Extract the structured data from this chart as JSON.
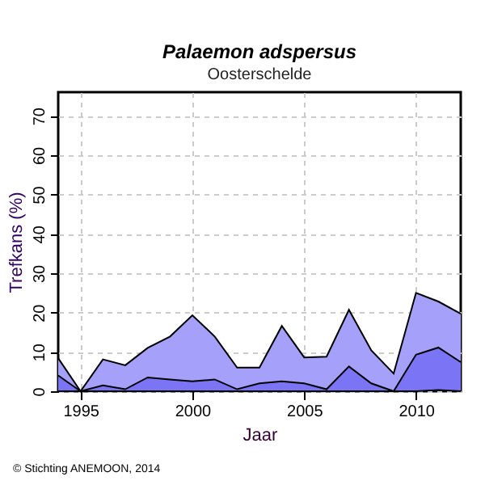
{
  "chart_data": {
    "type": "area",
    "title": "Palaemon adspersus",
    "subtitle": "Oosterschelde",
    "xlabel": "Jaar",
    "ylabel": "Trefkans (%)",
    "x": [
      1994,
      1995,
      1996,
      1997,
      1998,
      1999,
      2000,
      2001,
      2002,
      2003,
      2004,
      2005,
      2006,
      2007,
      2008,
      2009,
      2010,
      2011,
      2012
    ],
    "series": [
      {
        "color": "#a5a0fa",
        "values": [
          8.4,
          0,
          8.1,
          6.6,
          11,
          13.9,
          19.3,
          13.9,
          6,
          6,
          16.6,
          8.6,
          8.8,
          20.7,
          10.4,
          4.5,
          25,
          22.8,
          19.7
        ]
      },
      {
        "color": "#7b74f5",
        "values": [
          4,
          0,
          1.5,
          0.5,
          3.5,
          3,
          2.5,
          3,
          0.5,
          2,
          2.5,
          2,
          0.5,
          6.3,
          2,
          0,
          9.3,
          11.1,
          7.4
        ]
      },
      {
        "color": "#4b44e0",
        "values": [
          0,
          0,
          0,
          0,
          0,
          0,
          0,
          0,
          0,
          0,
          0,
          0,
          0,
          0,
          0,
          0,
          0,
          0.3,
          0
        ]
      }
    ],
    "xlim": [
      1994,
      2012
    ],
    "ylim": [
      0,
      76
    ],
    "xticks": [
      1995,
      2000,
      2005,
      2010
    ],
    "yticks": [
      0,
      10,
      20,
      30,
      40,
      50,
      60,
      70
    ],
    "grid": true,
    "annotations": [
      "© Stichting ANEMOON, 2014"
    ]
  }
}
